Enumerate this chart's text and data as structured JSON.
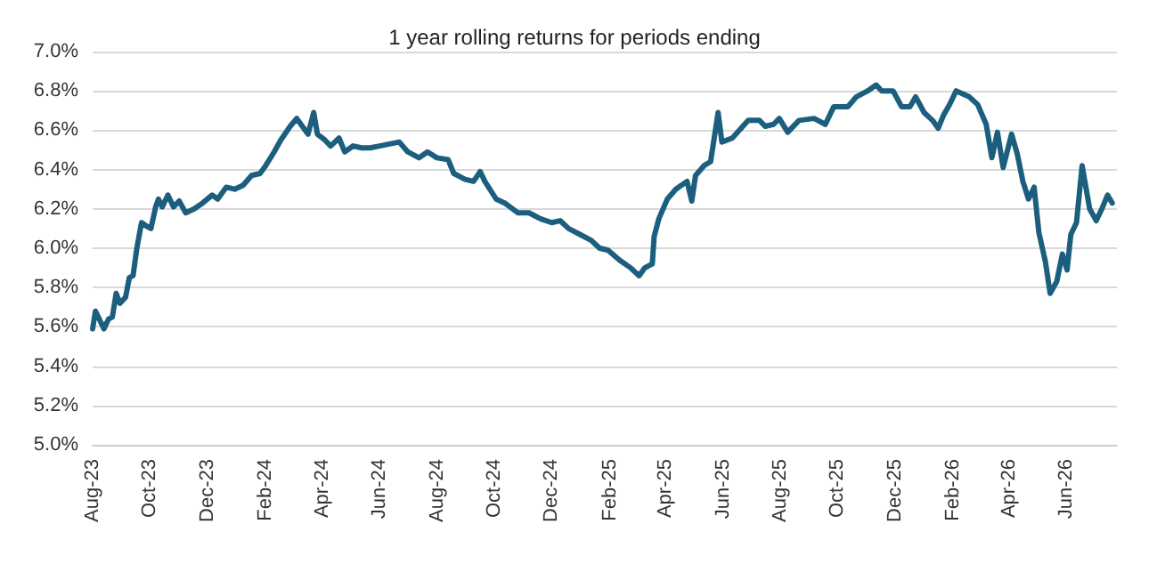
{
  "chart_data": {
    "type": "line",
    "title": "1 year rolling returns for periods ending",
    "x": [
      "2023-08-01",
      "2023-08-04",
      "2023-08-08",
      "2023-08-13",
      "2023-08-18",
      "2023-08-22",
      "2023-08-26",
      "2023-08-30",
      "2023-09-05",
      "2023-09-09",
      "2023-09-13",
      "2023-09-17",
      "2023-09-22",
      "2023-09-28",
      "2023-10-02",
      "2023-10-07",
      "2023-10-10",
      "2023-10-14",
      "2023-10-20",
      "2023-10-26",
      "2023-11-01",
      "2023-11-08",
      "2023-11-17",
      "2023-11-26",
      "2023-12-06",
      "2023-12-12",
      "2023-12-21",
      "2023-12-30",
      "2024-01-08",
      "2024-01-17",
      "2024-01-26",
      "2024-02-01",
      "2024-02-10",
      "2024-02-17",
      "2024-02-27",
      "2024-03-05",
      "2024-03-11",
      "2024-03-17",
      "2024-03-23",
      "2024-03-27",
      "2024-04-04",
      "2024-04-10",
      "2024-04-19",
      "2024-04-25",
      "2024-05-04",
      "2024-05-13",
      "2024-05-22",
      "2024-06-01",
      "2024-06-22",
      "2024-07-01",
      "2024-07-13",
      "2024-07-22",
      "2024-08-01",
      "2024-08-13",
      "2024-08-19",
      "2024-08-31",
      "2024-09-09",
      "2024-09-16",
      "2024-09-21",
      "2024-10-03",
      "2024-10-12",
      "2024-10-26",
      "2024-11-07",
      "2024-11-19",
      "2024-12-01",
      "2024-12-10",
      "2024-12-19",
      "2024-12-31",
      "2025-01-12",
      "2025-01-21",
      "2025-01-30",
      "2025-02-11",
      "2025-02-23",
      "2025-03-04",
      "2025-03-10",
      "2025-03-18",
      "2025-03-20",
      "2025-03-25",
      "2025-04-03",
      "2025-04-12",
      "2025-04-24",
      "2025-04-29",
      "2025-05-03",
      "2025-05-12",
      "2025-05-19",
      "2025-05-27",
      "2025-05-31",
      "2025-06-11",
      "2025-06-28",
      "2025-07-10",
      "2025-07-16",
      "2025-07-25",
      "2025-07-31",
      "2025-08-09",
      "2025-08-21",
      "2025-09-06",
      "2025-09-18",
      "2025-09-27",
      "2025-10-12",
      "2025-10-21",
      "2025-11-02",
      "2025-11-11",
      "2025-11-17",
      "2025-11-29",
      "2025-12-08",
      "2025-12-17",
      "2025-12-23",
      "2026-01-01",
      "2026-01-10",
      "2026-01-16",
      "2026-01-22",
      "2026-01-28",
      "2026-02-04",
      "2026-02-18",
      "2026-02-27",
      "2026-03-08",
      "2026-03-14",
      "2026-03-20",
      "2026-03-26",
      "2026-04-04",
      "2026-04-10",
      "2026-04-16",
      "2026-04-22",
      "2026-04-28",
      "2026-05-03",
      "2026-05-10",
      "2026-05-15",
      "2026-05-22",
      "2026-05-28",
      "2026-06-02",
      "2026-06-06",
      "2026-06-12",
      "2026-06-18",
      "2026-06-26",
      "2026-07-03",
      "2026-07-09",
      "2026-07-15",
      "2026-07-20"
    ],
    "series": [
      {
        "color": "#1b5e7e",
        "values": [
          5.59,
          5.68,
          5.64,
          5.59,
          5.64,
          5.65,
          5.77,
          5.72,
          5.75,
          5.85,
          5.86,
          6.0,
          6.13,
          6.11,
          6.1,
          6.21,
          6.25,
          6.21,
          6.27,
          6.21,
          6.24,
          6.18,
          6.2,
          6.23,
          6.27,
          6.25,
          6.31,
          6.3,
          6.32,
          6.37,
          6.38,
          6.42,
          6.49,
          6.55,
          6.62,
          6.66,
          6.62,
          6.58,
          6.69,
          6.58,
          6.55,
          6.52,
          6.56,
          6.49,
          6.52,
          6.51,
          6.51,
          6.52,
          6.54,
          6.49,
          6.46,
          6.49,
          6.46,
          6.45,
          6.38,
          6.35,
          6.34,
          6.39,
          6.34,
          6.25,
          6.23,
          6.18,
          6.18,
          6.15,
          6.13,
          6.14,
          6.1,
          6.07,
          6.04,
          6.0,
          5.99,
          5.94,
          5.9,
          5.86,
          5.9,
          5.92,
          6.06,
          6.15,
          6.25,
          6.3,
          6.34,
          6.24,
          6.37,
          6.42,
          6.44,
          6.69,
          6.54,
          6.56,
          6.65,
          6.65,
          6.62,
          6.63,
          6.66,
          6.59,
          6.65,
          6.66,
          6.63,
          6.72,
          6.72,
          6.77,
          6.8,
          6.83,
          6.8,
          6.8,
          6.72,
          6.72,
          6.77,
          6.69,
          6.65,
          6.61,
          6.68,
          6.73,
          6.8,
          6.77,
          6.73,
          6.63,
          6.46,
          6.59,
          6.41,
          6.58,
          6.48,
          6.34,
          6.25,
          6.31,
          6.08,
          5.93,
          5.77,
          5.83,
          5.97,
          5.89,
          6.07,
          6.13,
          6.42,
          6.2,
          6.14,
          6.2,
          6.27,
          6.23
        ]
      }
    ],
    "xlim": [
      "2023-08-01",
      "2026-07-25"
    ],
    "xticks": [
      {
        "value": "2023-08-01",
        "label": "Aug-23"
      },
      {
        "value": "2023-10-01",
        "label": "Oct-23"
      },
      {
        "value": "2023-12-01",
        "label": "Dec-23"
      },
      {
        "value": "2024-02-01",
        "label": "Feb-24"
      },
      {
        "value": "2024-04-01",
        "label": "Apr-24"
      },
      {
        "value": "2024-06-01",
        "label": "Jun-24"
      },
      {
        "value": "2024-08-01",
        "label": "Aug-24"
      },
      {
        "value": "2024-10-01",
        "label": "Oct-24"
      },
      {
        "value": "2024-12-01",
        "label": "Dec-24"
      },
      {
        "value": "2025-02-01",
        "label": "Feb-25"
      },
      {
        "value": "2025-04-01",
        "label": "Apr-25"
      },
      {
        "value": "2025-06-01",
        "label": "Jun-25"
      },
      {
        "value": "2025-08-01",
        "label": "Aug-25"
      },
      {
        "value": "2025-10-01",
        "label": "Oct-25"
      },
      {
        "value": "2025-12-01",
        "label": "Dec-25"
      },
      {
        "value": "2026-02-01",
        "label": "Feb-26"
      },
      {
        "value": "2026-04-01",
        "label": "Apr-26"
      },
      {
        "value": "2026-06-01",
        "label": "Jun-26"
      }
    ],
    "ylim": [
      5.0,
      7.0
    ],
    "yticks": [
      {
        "value": 5.0,
        "label": "5.0%"
      },
      {
        "value": 5.2,
        "label": "5.2%"
      },
      {
        "value": 5.4,
        "label": "5.4%"
      },
      {
        "value": 5.6,
        "label": "5.6%"
      },
      {
        "value": 5.8,
        "label": "5.8%"
      },
      {
        "value": 6.0,
        "label": "6.0%"
      },
      {
        "value": 6.2,
        "label": "6.2%"
      },
      {
        "value": 6.4,
        "label": "6.4%"
      },
      {
        "value": 6.6,
        "label": "6.6%"
      },
      {
        "value": 6.8,
        "label": "6.8%"
      },
      {
        "value": 7.0,
        "label": "7.0%"
      }
    ],
    "grid": "y",
    "marker": "none",
    "line_style": "solid"
  }
}
